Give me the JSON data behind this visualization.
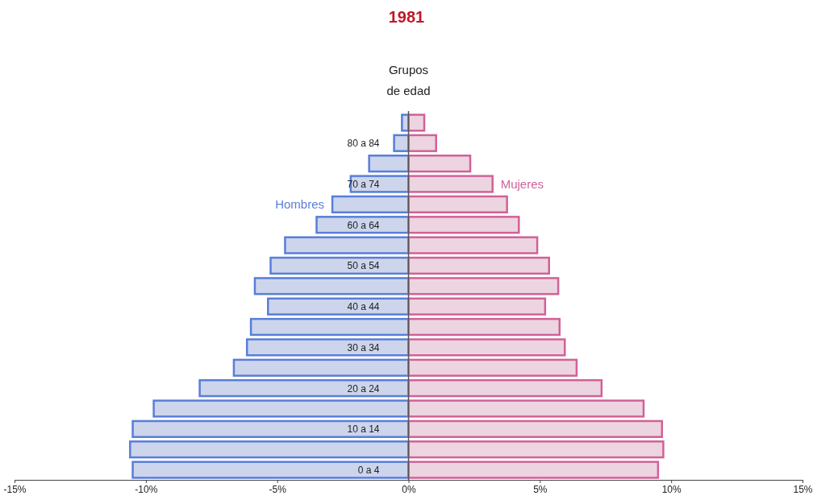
{
  "chart_data": {
    "type": "bar",
    "title": "1981",
    "ylabel": "Grupos de edad",
    "orientation": "horizontal",
    "stacked": true,
    "categories": [
      null,
      "80 a 84",
      null,
      "70 a 74",
      null,
      "60 a 64",
      null,
      "50 a 54",
      null,
      "40 a 44",
      null,
      "30 a 34",
      null,
      "20 a 24",
      null,
      "10 a 14",
      null,
      "0 a 4"
    ],
    "series": [
      {
        "name": "Hombres",
        "color": "#ccd5eb",
        "values": [
          -0.25,
          -0.55,
          -1.5,
          -2.2,
          -2.9,
          -3.5,
          -4.7,
          -5.25,
          -5.85,
          -5.35,
          -6.0,
          -6.15,
          -6.65,
          -7.95,
          -9.7,
          -10.5,
          -10.6,
          -10.5
        ]
      },
      {
        "name": "Mujeres",
        "color": "#ecd5e0",
        "values": [
          0.6,
          1.05,
          2.35,
          3.2,
          3.75,
          4.2,
          4.9,
          5.35,
          5.7,
          5.2,
          5.75,
          5.95,
          6.4,
          7.35,
          8.95,
          9.65,
          9.7,
          9.5
        ]
      }
    ],
    "xlim": [
      -15,
      15
    ],
    "xticks": [
      {
        "value": -15,
        "label": "-15%"
      },
      {
        "value": -10,
        "label": "-10%"
      },
      {
        "value": -5,
        "label": "-5%"
      },
      {
        "value": 0,
        "label": "0%"
      },
      {
        "value": 5,
        "label": "5%"
      },
      {
        "value": 10,
        "label": "10%"
      },
      {
        "value": 15,
        "label": "15%"
      }
    ]
  }
}
